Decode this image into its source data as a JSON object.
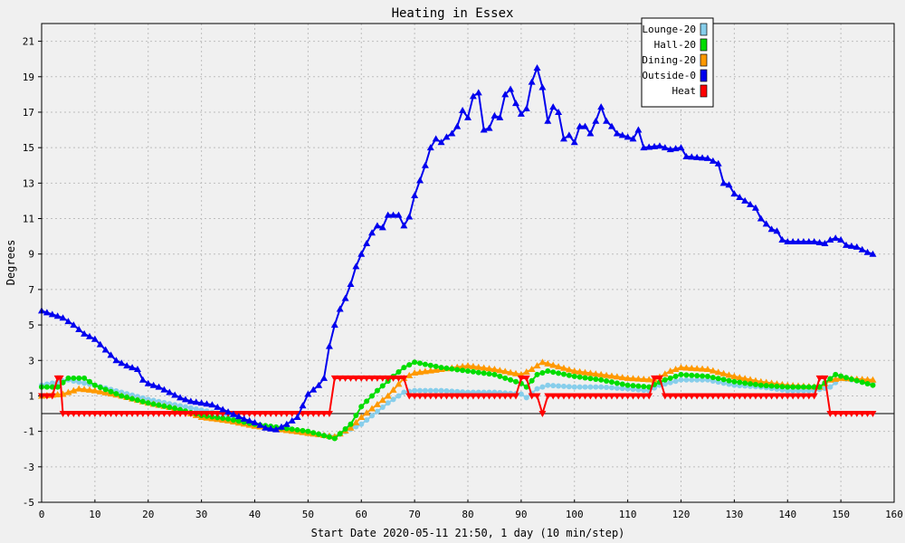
{
  "chart_data": {
    "type": "line",
    "title": "Heating in Essex",
    "xlabel": "Start Date 2020-05-11 21:50, 1 day (10 min/step)",
    "ylabel": "Degrees",
    "xlim": [
      0,
      160
    ],
    "ylim": [
      -5,
      22
    ],
    "x_ticks": [
      0,
      10,
      20,
      30,
      40,
      50,
      60,
      70,
      80,
      90,
      100,
      110,
      120,
      130,
      140,
      150,
      160
    ],
    "y_ticks": [
      -5,
      -3,
      -1,
      1,
      3,
      5,
      7,
      9,
      11,
      13,
      15,
      17,
      19,
      21
    ],
    "grid": true,
    "legend_position": "top-right",
    "series": [
      {
        "name": "Lounge-20",
        "color": "#87ceeb",
        "marker": "circle",
        "points": [
          [
            0,
            1.6
          ],
          [
            5,
            1.9
          ],
          [
            10,
            1.6
          ],
          [
            15,
            1.2
          ],
          [
            20,
            0.8
          ],
          [
            25,
            0.5
          ],
          [
            30,
            0.2
          ],
          [
            35,
            -0.1
          ],
          [
            40,
            -0.6
          ],
          [
            45,
            -0.8
          ],
          [
            50,
            -1.1
          ],
          [
            55,
            -1.3
          ],
          [
            60,
            -0.6
          ],
          [
            65,
            0.6
          ],
          [
            68,
            1.2
          ],
          [
            70,
            1.3
          ],
          [
            75,
            1.3
          ],
          [
            80,
            1.2
          ],
          [
            85,
            1.2
          ],
          [
            90,
            1.1
          ],
          [
            91,
            0.9
          ],
          [
            93,
            1.4
          ],
          [
            95,
            1.6
          ],
          [
            100,
            1.5
          ],
          [
            105,
            1.5
          ],
          [
            110,
            1.4
          ],
          [
            114,
            1.3
          ],
          [
            116,
            1.6
          ],
          [
            120,
            1.9
          ],
          [
            125,
            1.9
          ],
          [
            130,
            1.6
          ],
          [
            135,
            1.5
          ],
          [
            140,
            1.3
          ],
          [
            145,
            1.3
          ],
          [
            148,
            1.5
          ],
          [
            150,
            2.0
          ],
          [
            156,
            1.7
          ]
        ]
      },
      {
        "name": "Hall-20",
        "color": "#00dd00",
        "marker": "circle",
        "points": [
          [
            0,
            1.5
          ],
          [
            3,
            1.5
          ],
          [
            5,
            2.0
          ],
          [
            8,
            2.0
          ],
          [
            10,
            1.6
          ],
          [
            15,
            1.0
          ],
          [
            20,
            0.6
          ],
          [
            25,
            0.3
          ],
          [
            30,
            -0.1
          ],
          [
            35,
            -0.3
          ],
          [
            40,
            -0.6
          ],
          [
            45,
            -0.8
          ],
          [
            50,
            -1.0
          ],
          [
            55,
            -1.4
          ],
          [
            58,
            -0.6
          ],
          [
            60,
            0.4
          ],
          [
            63,
            1.3
          ],
          [
            66,
            2.1
          ],
          [
            68,
            2.6
          ],
          [
            70,
            2.9
          ],
          [
            75,
            2.6
          ],
          [
            80,
            2.4
          ],
          [
            85,
            2.2
          ],
          [
            90,
            1.7
          ],
          [
            91,
            1.5
          ],
          [
            93,
            2.2
          ],
          [
            95,
            2.4
          ],
          [
            100,
            2.1
          ],
          [
            105,
            1.9
          ],
          [
            110,
            1.6
          ],
          [
            114,
            1.5
          ],
          [
            117,
            1.9
          ],
          [
            120,
            2.2
          ],
          [
            125,
            2.1
          ],
          [
            130,
            1.8
          ],
          [
            135,
            1.6
          ],
          [
            140,
            1.5
          ],
          [
            146,
            1.5
          ],
          [
            149,
            2.2
          ],
          [
            156,
            1.6
          ]
        ]
      },
      {
        "name": "Dining-20",
        "color": "#ff9900",
        "marker": "triangle",
        "points": [
          [
            0,
            1.0
          ],
          [
            4,
            1.1
          ],
          [
            7,
            1.4
          ],
          [
            10,
            1.3
          ],
          [
            15,
            1.0
          ],
          [
            20,
            0.6
          ],
          [
            25,
            0.3
          ],
          [
            30,
            -0.2
          ],
          [
            35,
            -0.4
          ],
          [
            40,
            -0.7
          ],
          [
            45,
            -0.9
          ],
          [
            50,
            -1.1
          ],
          [
            55,
            -1.3
          ],
          [
            58,
            -0.8
          ],
          [
            60,
            -0.2
          ],
          [
            65,
            1.0
          ],
          [
            68,
            2.0
          ],
          [
            70,
            2.3
          ],
          [
            75,
            2.5
          ],
          [
            80,
            2.7
          ],
          [
            85,
            2.5
          ],
          [
            90,
            2.2
          ],
          [
            92,
            2.5
          ],
          [
            94,
            2.9
          ],
          [
            100,
            2.4
          ],
          [
            105,
            2.2
          ],
          [
            110,
            2.0
          ],
          [
            115,
            1.9
          ],
          [
            118,
            2.4
          ],
          [
            120,
            2.6
          ],
          [
            125,
            2.5
          ],
          [
            130,
            2.1
          ],
          [
            135,
            1.8
          ],
          [
            140,
            1.6
          ],
          [
            146,
            1.5
          ],
          [
            148,
            1.9
          ],
          [
            150,
            2.0
          ],
          [
            156,
            1.9
          ]
        ]
      },
      {
        "name": "Outside-0",
        "color": "#0000ee",
        "marker": "triangle",
        "points": [
          [
            0,
            5.8
          ],
          [
            2,
            5.6
          ],
          [
            4,
            5.4
          ],
          [
            6,
            5.0
          ],
          [
            8,
            4.5
          ],
          [
            10,
            4.2
          ],
          [
            12,
            3.6
          ],
          [
            14,
            3.0
          ],
          [
            16,
            2.7
          ],
          [
            18,
            2.5
          ],
          [
            19,
            1.9
          ],
          [
            20,
            1.7
          ],
          [
            22,
            1.5
          ],
          [
            24,
            1.2
          ],
          [
            26,
            0.9
          ],
          [
            28,
            0.7
          ],
          [
            30,
            0.6
          ],
          [
            32,
            0.5
          ],
          [
            35,
            0.1
          ],
          [
            38,
            -0.3
          ],
          [
            40,
            -0.5
          ],
          [
            42,
            -0.8
          ],
          [
            44,
            -0.9
          ],
          [
            46,
            -0.6
          ],
          [
            48,
            -0.2
          ],
          [
            50,
            1.1
          ],
          [
            52,
            1.6
          ],
          [
            53,
            2.0
          ],
          [
            54,
            3.8
          ],
          [
            55,
            5.0
          ],
          [
            56,
            5.9
          ],
          [
            57,
            6.5
          ],
          [
            58,
            7.3
          ],
          [
            59,
            8.3
          ],
          [
            60,
            9.0
          ],
          [
            61,
            9.6
          ],
          [
            62,
            10.2
          ],
          [
            63,
            10.6
          ],
          [
            64,
            10.5
          ],
          [
            65,
            11.2
          ],
          [
            67,
            11.2
          ],
          [
            68,
            10.6
          ],
          [
            69,
            11.1
          ],
          [
            70,
            12.3
          ],
          [
            72,
            14.0
          ],
          [
            73,
            15.0
          ],
          [
            74,
            15.5
          ],
          [
            75,
            15.3
          ],
          [
            76,
            15.6
          ],
          [
            77,
            15.8
          ],
          [
            78,
            16.2
          ],
          [
            79,
            17.1
          ],
          [
            80,
            16.7
          ],
          [
            81,
            17.9
          ],
          [
            82,
            18.1
          ],
          [
            83,
            16.0
          ],
          [
            84,
            16.1
          ],
          [
            85,
            16.8
          ],
          [
            86,
            16.7
          ],
          [
            87,
            18.0
          ],
          [
            88,
            18.3
          ],
          [
            89,
            17.5
          ],
          [
            90,
            16.9
          ],
          [
            91,
            17.2
          ],
          [
            92,
            18.7
          ],
          [
            93,
            19.5
          ],
          [
            94,
            18.4
          ],
          [
            95,
            16.5
          ],
          [
            96,
            17.3
          ],
          [
            97,
            17.0
          ],
          [
            98,
            15.5
          ],
          [
            99,
            15.7
          ],
          [
            100,
            15.3
          ],
          [
            101,
            16.2
          ],
          [
            102,
            16.2
          ],
          [
            103,
            15.8
          ],
          [
            104,
            16.5
          ],
          [
            105,
            17.3
          ],
          [
            106,
            16.5
          ],
          [
            107,
            16.2
          ],
          [
            108,
            15.8
          ],
          [
            110,
            15.6
          ],
          [
            111,
            15.5
          ],
          [
            112,
            16.0
          ],
          [
            113,
            15.0
          ],
          [
            116,
            15.1
          ],
          [
            118,
            14.9
          ],
          [
            120,
            15.0
          ],
          [
            121,
            14.5
          ],
          [
            125,
            14.4
          ],
          [
            127,
            14.1
          ],
          [
            128,
            13.0
          ],
          [
            129,
            12.9
          ],
          [
            130,
            12.4
          ],
          [
            132,
            12.0
          ],
          [
            134,
            11.6
          ],
          [
            135,
            11.0
          ],
          [
            137,
            10.4
          ],
          [
            138,
            10.3
          ],
          [
            139,
            9.8
          ],
          [
            140,
            9.7
          ],
          [
            145,
            9.7
          ],
          [
            147,
            9.6
          ],
          [
            148,
            9.8
          ],
          [
            149,
            9.9
          ],
          [
            150,
            9.8
          ],
          [
            151,
            9.5
          ],
          [
            153,
            9.4
          ],
          [
            155,
            9.1
          ],
          [
            156,
            9.0
          ]
        ]
      },
      {
        "name": "Heat",
        "color": "#ff0000",
        "marker": "triangle-down",
        "points": [
          [
            0,
            1
          ],
          [
            2,
            1
          ],
          [
            3,
            2
          ],
          [
            3.5,
            2
          ],
          [
            4,
            0
          ],
          [
            54,
            0
          ],
          [
            55,
            2
          ],
          [
            68,
            2
          ],
          [
            69,
            1
          ],
          [
            89,
            1
          ],
          [
            90,
            2
          ],
          [
            91,
            2
          ],
          [
            92,
            1
          ],
          [
            93,
            1
          ],
          [
            94,
            0
          ],
          [
            95,
            1
          ],
          [
            114,
            1
          ],
          [
            115,
            2
          ],
          [
            116,
            2
          ],
          [
            117,
            1
          ],
          [
            145,
            1
          ],
          [
            146,
            2
          ],
          [
            147,
            2
          ],
          [
            148,
            0
          ],
          [
            156,
            0
          ]
        ]
      }
    ]
  }
}
